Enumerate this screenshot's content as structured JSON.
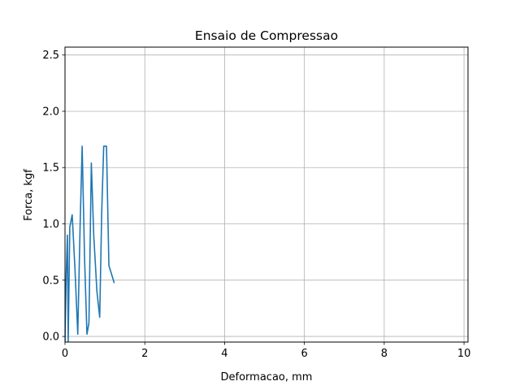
{
  "chart_data": {
    "type": "line",
    "title": "Ensaio de Compressao",
    "xlabel": "Deformacao, mm",
    "ylabel": "Forca, kgf",
    "xlim": [
      0,
      10.1
    ],
    "ylim": [
      -0.05,
      2.57
    ],
    "xticks": [
      0,
      2,
      4,
      6,
      8,
      10
    ],
    "xtick_labels": [
      "0",
      "2",
      "4",
      "6",
      "8",
      "10"
    ],
    "yticks": [
      0.0,
      0.5,
      1.0,
      1.5,
      2.0,
      2.5
    ],
    "ytick_labels": [
      "0.0",
      "0.5",
      "1.0",
      "1.5",
      "2.0",
      "2.5"
    ],
    "grid": true,
    "legend": "none",
    "series": [
      {
        "color": "#1f77b4",
        "x": [
          0.0,
          0.03,
          0.06,
          0.08,
          0.12,
          0.18,
          0.25,
          0.32,
          0.38,
          0.43,
          0.49,
          0.55,
          0.6,
          0.66,
          0.72,
          0.8,
          0.87,
          0.92,
          0.97,
          1.0,
          1.04,
          1.1,
          1.23
        ],
        "y": [
          -0.05,
          0.55,
          0.9,
          -0.05,
          0.97,
          1.08,
          0.6,
          0.02,
          1.0,
          1.69,
          0.7,
          0.02,
          0.12,
          1.54,
          0.9,
          0.4,
          0.17,
          1.1,
          1.69,
          1.69,
          1.69,
          0.63,
          0.48
        ]
      }
    ]
  }
}
